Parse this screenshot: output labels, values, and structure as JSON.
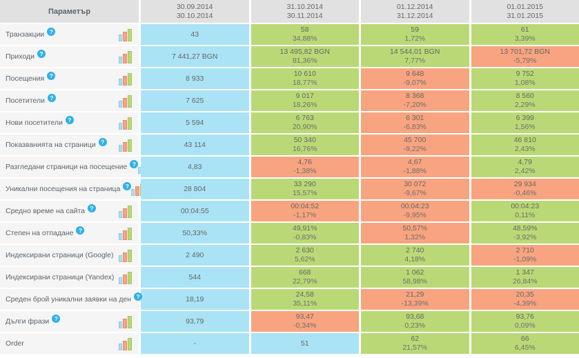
{
  "header": {
    "param_label": "Параметър",
    "periods": [
      {
        "from": "30.09.2014",
        "to": "30.10.2014"
      },
      {
        "from": "31.10.2014",
        "to": "30.11.2014"
      },
      {
        "from": "01.12.2014",
        "to": "31.12.2014"
      },
      {
        "from": "01.01.2015",
        "to": "31.01.2015"
      }
    ]
  },
  "icons": {
    "help_glyph": "?",
    "help_icon_name": "question-help-icon",
    "chart_icon_name": "mini-bar-chart-icon"
  },
  "colors": {
    "header_bg": "#e1e1e1",
    "label_bg": "#f5f5f5",
    "blue_cell": "#aae3f5",
    "green_cell": "#bad976",
    "orange_cell": "#f8a480",
    "help_icon": "#2fb0e8"
  },
  "rows": [
    {
      "label": "Транзакции",
      "help": true,
      "cells": [
        {
          "value": "43",
          "pct": "",
          "bg": "blue"
        },
        {
          "value": "58",
          "pct": "34,88%",
          "bg": "green"
        },
        {
          "value": "59",
          "pct": "1,72%",
          "bg": "green"
        },
        {
          "value": "61",
          "pct": "3,39%",
          "bg": "green"
        }
      ]
    },
    {
      "label": "Приходи",
      "help": true,
      "cells": [
        {
          "value": "7 441,27 BGN",
          "pct": "",
          "bg": "blue"
        },
        {
          "value": "13 495,82 BGN",
          "pct": "81,36%",
          "bg": "green"
        },
        {
          "value": "14 544,01 BGN",
          "pct": "7,77%",
          "bg": "green"
        },
        {
          "value": "13 701,72 BGN",
          "pct": "-5,79%",
          "bg": "orange"
        }
      ]
    },
    {
      "label": "Посещения",
      "help": true,
      "cells": [
        {
          "value": "8 933",
          "pct": "",
          "bg": "blue"
        },
        {
          "value": "10 610",
          "pct": "18,77%",
          "bg": "green"
        },
        {
          "value": "9 648",
          "pct": "-9,07%",
          "bg": "orange"
        },
        {
          "value": "9 752",
          "pct": "1,08%",
          "bg": "green"
        }
      ]
    },
    {
      "label": "Посетители",
      "help": true,
      "cells": [
        {
          "value": "7 625",
          "pct": "",
          "bg": "blue"
        },
        {
          "value": "9 017",
          "pct": "18,26%",
          "bg": "green"
        },
        {
          "value": "8 368",
          "pct": "-7,20%",
          "bg": "orange"
        },
        {
          "value": "8 560",
          "pct": "2,29%",
          "bg": "green"
        }
      ]
    },
    {
      "label": "Нови посетители",
      "help": true,
      "cells": [
        {
          "value": "5 594",
          "pct": "",
          "bg": "blue"
        },
        {
          "value": "6 763",
          "pct": "20,90%",
          "bg": "green"
        },
        {
          "value": "6 301",
          "pct": "-6,83%",
          "bg": "orange"
        },
        {
          "value": "6 399",
          "pct": "1,56%",
          "bg": "green"
        }
      ]
    },
    {
      "label": "Показванията на страници",
      "help": true,
      "cells": [
        {
          "value": "43 114",
          "pct": "",
          "bg": "blue"
        },
        {
          "value": "50 340",
          "pct": "16,76%",
          "bg": "green"
        },
        {
          "value": "45 700",
          "pct": "-9,22%",
          "bg": "orange"
        },
        {
          "value": "46 810",
          "pct": "2,43%",
          "bg": "green"
        }
      ]
    },
    {
      "label": "Разгледани страници на посещение",
      "help": true,
      "cells": [
        {
          "value": "4,83",
          "pct": "",
          "bg": "blue"
        },
        {
          "value": "4,76",
          "pct": "-1,38%",
          "bg": "orange"
        },
        {
          "value": "4,67",
          "pct": "-1,88%",
          "bg": "orange"
        },
        {
          "value": "4,79",
          "pct": "2,42%",
          "bg": "green"
        }
      ]
    },
    {
      "label": "Уникални посещения на страница",
      "help": true,
      "cells": [
        {
          "value": "28 804",
          "pct": "",
          "bg": "blue"
        },
        {
          "value": "33 290",
          "pct": "15,57%",
          "bg": "green"
        },
        {
          "value": "30 072",
          "pct": "-9,67%",
          "bg": "orange"
        },
        {
          "value": "29 934",
          "pct": "-0,46%",
          "bg": "orange"
        }
      ]
    },
    {
      "label": "Средно време на сайта",
      "help": true,
      "cells": [
        {
          "value": "00:04:55",
          "pct": "",
          "bg": "blue"
        },
        {
          "value": "00:04:52",
          "pct": "-1,17%",
          "bg": "orange"
        },
        {
          "value": "00:04:23",
          "pct": "-9,95%",
          "bg": "orange"
        },
        {
          "value": "00:04:23",
          "pct": "0,11%",
          "bg": "green"
        }
      ]
    },
    {
      "label": "Степен на отпадане",
      "help": true,
      "cells": [
        {
          "value": "50,33%",
          "pct": "",
          "bg": "blue"
        },
        {
          "value": "49,91%",
          "pct": "-0,83%",
          "bg": "green"
        },
        {
          "value": "50,57%",
          "pct": "1,32%",
          "bg": "orange"
        },
        {
          "value": "48,59%",
          "pct": "-3,92%",
          "bg": "green"
        }
      ]
    },
    {
      "label": "Индексирани страници (Google)",
      "help": false,
      "cells": [
        {
          "value": "2 490",
          "pct": "",
          "bg": "blue"
        },
        {
          "value": "2 630",
          "pct": "5,62%",
          "bg": "green"
        },
        {
          "value": "2 740",
          "pct": "4,18%",
          "bg": "green"
        },
        {
          "value": "2 710",
          "pct": "-1,09%",
          "bg": "orange"
        }
      ]
    },
    {
      "label": "Индексирани страници (Yandex)",
      "help": false,
      "cells": [
        {
          "value": "544",
          "pct": "",
          "bg": "blue"
        },
        {
          "value": "668",
          "pct": "22,79%",
          "bg": "green"
        },
        {
          "value": "1 062",
          "pct": "58,98%",
          "bg": "green"
        },
        {
          "value": "1 347",
          "pct": "26,84%",
          "bg": "green"
        }
      ]
    },
    {
      "label": "Среден брой уникални заявки на ден",
      "help": true,
      "cells": [
        {
          "value": "18,19",
          "pct": "",
          "bg": "blue"
        },
        {
          "value": "24,58",
          "pct": "35,11%",
          "bg": "green"
        },
        {
          "value": "21,29",
          "pct": "-13,39%",
          "bg": "orange"
        },
        {
          "value": "20,35",
          "pct": "-4,39%",
          "bg": "orange"
        }
      ]
    },
    {
      "label": "Дълги фрази",
      "help": true,
      "cells": [
        {
          "value": "93,79",
          "pct": "",
          "bg": "blue"
        },
        {
          "value": "93,47",
          "pct": "-0,34%",
          "bg": "orange"
        },
        {
          "value": "93,68",
          "pct": "0,23%",
          "bg": "green"
        },
        {
          "value": "93,76",
          "pct": "0,09%",
          "bg": "green"
        }
      ]
    },
    {
      "label": "Order",
      "help": false,
      "cells": [
        {
          "value": "-",
          "pct": "",
          "bg": "blue"
        },
        {
          "value": "51",
          "pct": "",
          "bg": "blue"
        },
        {
          "value": "62",
          "pct": "21,57%",
          "bg": "green"
        },
        {
          "value": "66",
          "pct": "6,45%",
          "bg": "green"
        }
      ]
    }
  ]
}
